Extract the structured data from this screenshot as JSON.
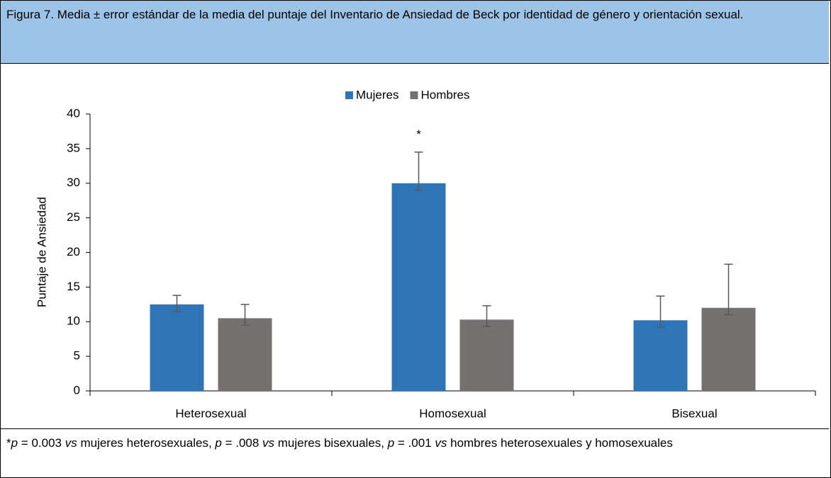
{
  "header": {
    "title": "Figura 7. Media ± error estándar de la media del puntaje del Inventario de Ansiedad de Beck por identidad de género y orientación sexual."
  },
  "chart_data": {
    "type": "bar",
    "categories": [
      "Heterosexual",
      "Homosexual",
      "Bisexual"
    ],
    "y_label": "Puntaje de Ansiedad",
    "ylim": [
      0,
      40
    ],
    "yticks": [
      0,
      5,
      10,
      15,
      20,
      25,
      30,
      35,
      40
    ],
    "annotation": "*",
    "series": [
      {
        "name": "Mujeres",
        "color": "#2e75b6",
        "values": [
          12.5,
          30,
          10.2
        ],
        "error_plus": [
          1.3,
          4.5,
          3.5
        ],
        "error_minus": [
          1.0,
          1.0,
          1.0
        ]
      },
      {
        "name": "Hombres",
        "color": "#767171",
        "values": [
          10.5,
          10.3,
          12
        ],
        "error_plus": [
          2.0,
          2.0,
          6.3
        ],
        "error_minus": [
          1.0,
          1.0,
          1.0
        ]
      }
    ]
  },
  "footnote": [
    "*",
    "p",
    " = 0.003 ",
    "vs",
    " mujeres heterosexuales, ",
    "p",
    " = .008 ",
    "vs",
    " mujeres bisexuales, ",
    "p",
    " = .001 ",
    "vs",
    " hombres heterosexuales y homosexuales"
  ]
}
